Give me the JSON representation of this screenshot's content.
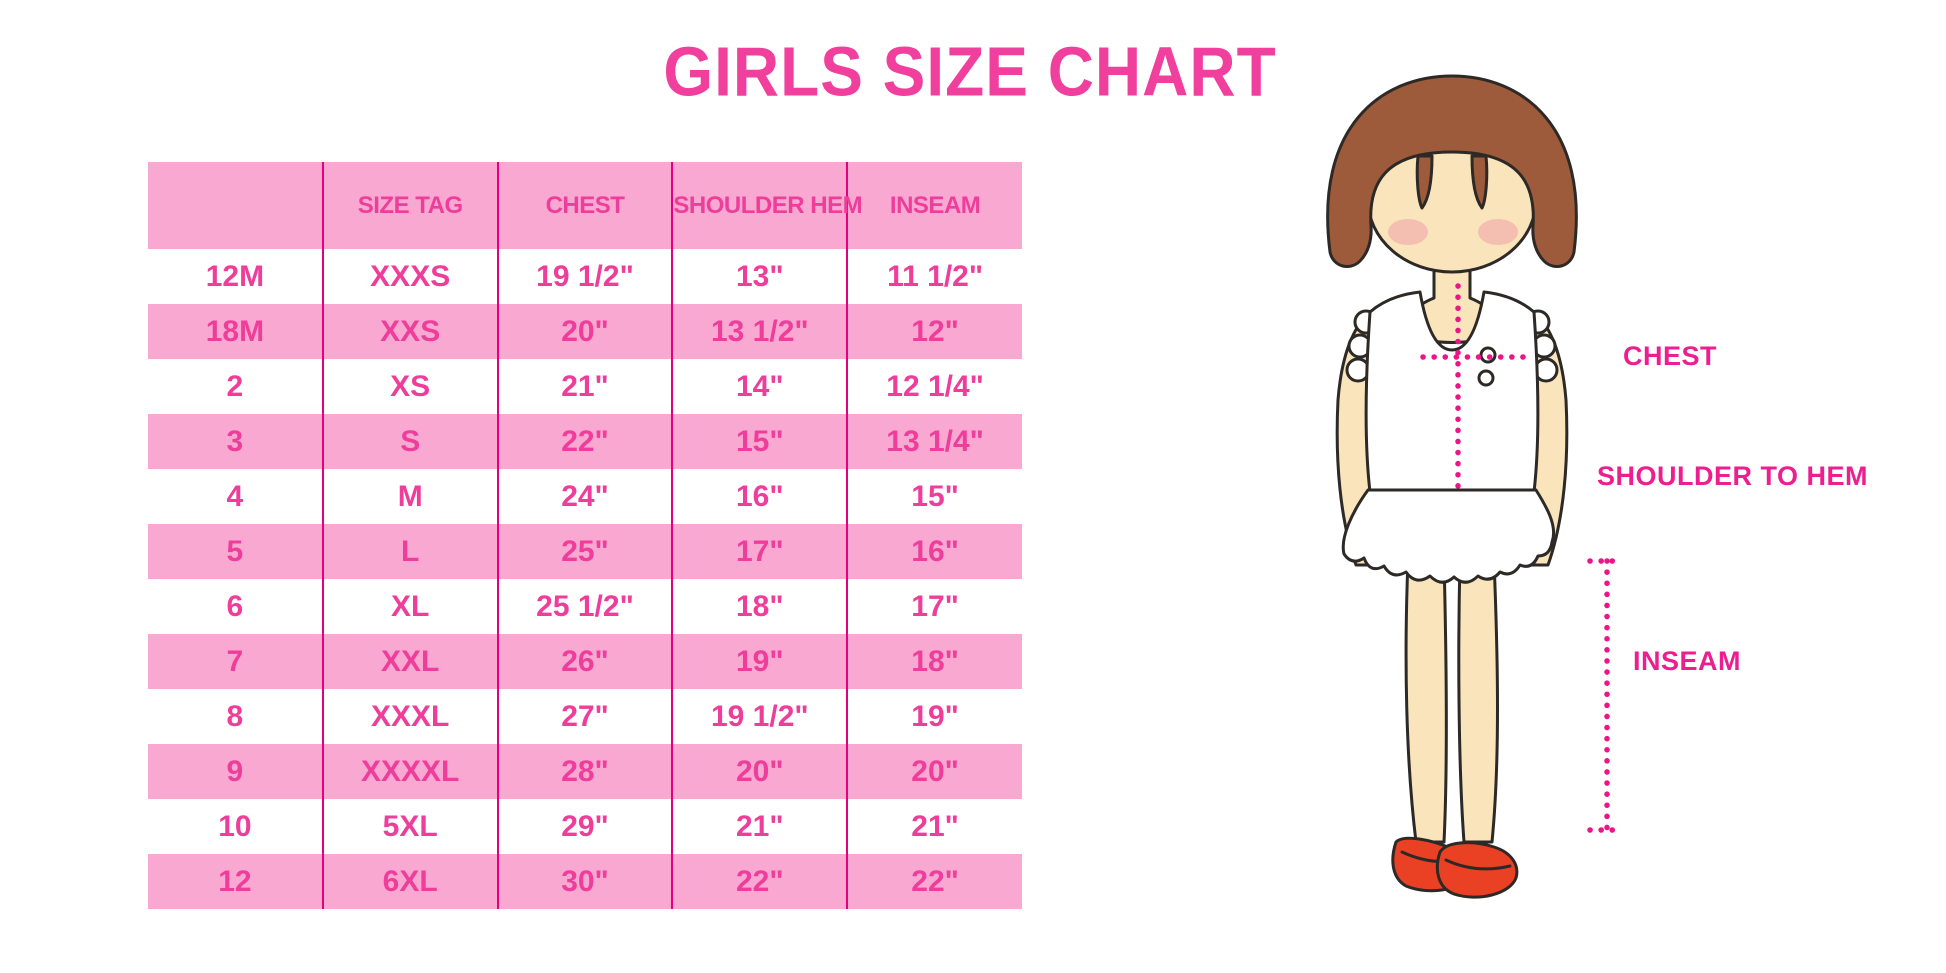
{
  "title": "GIRLS SIZE CHART",
  "chart_data": {
    "type": "table",
    "title": "GIRLS SIZE CHART",
    "columns": [
      "",
      "SIZE TAG",
      "CHEST",
      "SHOULDER HEM",
      "INSEAM"
    ],
    "rows": [
      [
        "12M",
        "XXXS",
        "19 1/2\"",
        "13\"",
        "11 1/2\""
      ],
      [
        "18M",
        "XXS",
        "20\"",
        "13 1/2\"",
        "12\""
      ],
      [
        "2",
        "XS",
        "21\"",
        "14\"",
        "12 1/4\""
      ],
      [
        "3",
        "S",
        "22\"",
        "15\"",
        "13 1/4\""
      ],
      [
        "4",
        "M",
        "24\"",
        "16\"",
        "15\""
      ],
      [
        "5",
        "L",
        "25\"",
        "17\"",
        "16\""
      ],
      [
        "6",
        "XL",
        "25 1/2\"",
        "18\"",
        "17\""
      ],
      [
        "7",
        "XXL",
        "26\"",
        "19\"",
        "18\""
      ],
      [
        "8",
        "XXXL",
        "27\"",
        "19 1/2\"",
        "19\""
      ],
      [
        "9",
        "XXXXL",
        "28\"",
        "20\"",
        "20\""
      ],
      [
        "10",
        "5XL",
        "29\"",
        "21\"",
        "21\""
      ],
      [
        "12",
        "6XL",
        "30\"",
        "22\"",
        "22\""
      ]
    ]
  },
  "figure": {
    "chest_label": "CHEST",
    "shoulder_to_hem_label": "SHOULDER TO HEM",
    "inseam_label": "INSEAM"
  },
  "colors": {
    "title_pink": "#f03f9c",
    "cell_text": "#ee3d9a",
    "row_pink": "#f9a8d2",
    "divider": "#e50080",
    "dotted_line": "#ec1488",
    "label_pink": "#ed1e8f",
    "hair_brown": "#9d5b3b",
    "skin": "#f9e4bc",
    "shoe_red": "#ea4124",
    "outline": "#2d2926"
  }
}
